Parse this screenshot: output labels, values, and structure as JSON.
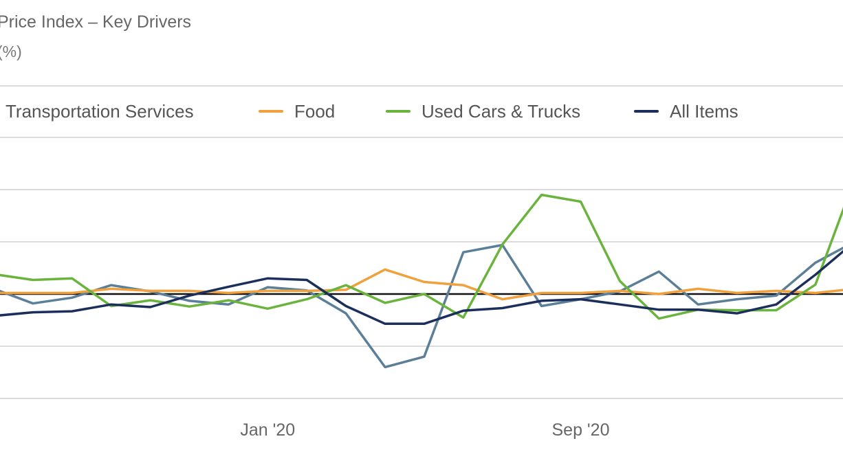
{
  "title": "Price Index – Key Drivers",
  "subtitle": "(%)",
  "colors": {
    "transportation": "#5b7f99",
    "food": "#f0a03c",
    "used_cars": "#6ab33d",
    "all_items": "#1c2f5c",
    "zero_line": "#111111",
    "grid": "#cfcfcf"
  },
  "chart_data": {
    "type": "line",
    "x_tick_labels": [
      "Jan '20",
      "Sep '20"
    ],
    "x_tick_index": [
      7,
      15
    ],
    "ylim": [
      -2,
      3
    ],
    "y_gridlines": [
      -2,
      -1,
      1,
      2,
      3
    ],
    "zero_line": 0,
    "grid": true,
    "legend_position": "top",
    "series": [
      {
        "name": "Transportation Services",
        "color": "#5b7f99",
        "values": [
          0.1,
          -0.18,
          -0.07,
          0.17,
          0.05,
          -0.13,
          -0.2,
          0.13,
          0.07,
          -0.37,
          -1.4,
          -1.2,
          0.8,
          0.94,
          -0.23,
          -0.1,
          0.05,
          0.43,
          -0.2,
          -0.1,
          -0.03,
          0.6,
          1.0
        ]
      },
      {
        "name": "Food",
        "color": "#f0a03c",
        "values": [
          0.02,
          0.02,
          0.02,
          0.1,
          0.06,
          0.06,
          0.02,
          0.06,
          0.06,
          0.08,
          0.47,
          0.23,
          0.17,
          -0.1,
          0.02,
          0.02,
          0.06,
          0.0,
          0.1,
          0.02,
          0.06,
          0.02,
          0.1
        ]
      },
      {
        "name": "Used Cars & Trucks",
        "color": "#6ab33d",
        "values": [
          0.38,
          0.27,
          0.3,
          -0.23,
          -0.12,
          -0.24,
          -0.12,
          -0.28,
          -0.1,
          0.17,
          -0.17,
          0.0,
          -0.45,
          0.95,
          1.9,
          1.77,
          0.25,
          -0.47,
          -0.3,
          -0.31,
          -0.31,
          0.18,
          2.2
        ]
      },
      {
        "name": "All Items",
        "color": "#1c2f5c",
        "values": [
          -0.42,
          -0.35,
          -0.33,
          -0.2,
          -0.25,
          -0.03,
          0.14,
          0.3,
          0.27,
          -0.23,
          -0.57,
          -0.57,
          -0.32,
          -0.27,
          -0.13,
          -0.1,
          -0.2,
          -0.3,
          -0.3,
          -0.37,
          -0.2,
          0.37,
          1.0
        ]
      }
    ]
  }
}
